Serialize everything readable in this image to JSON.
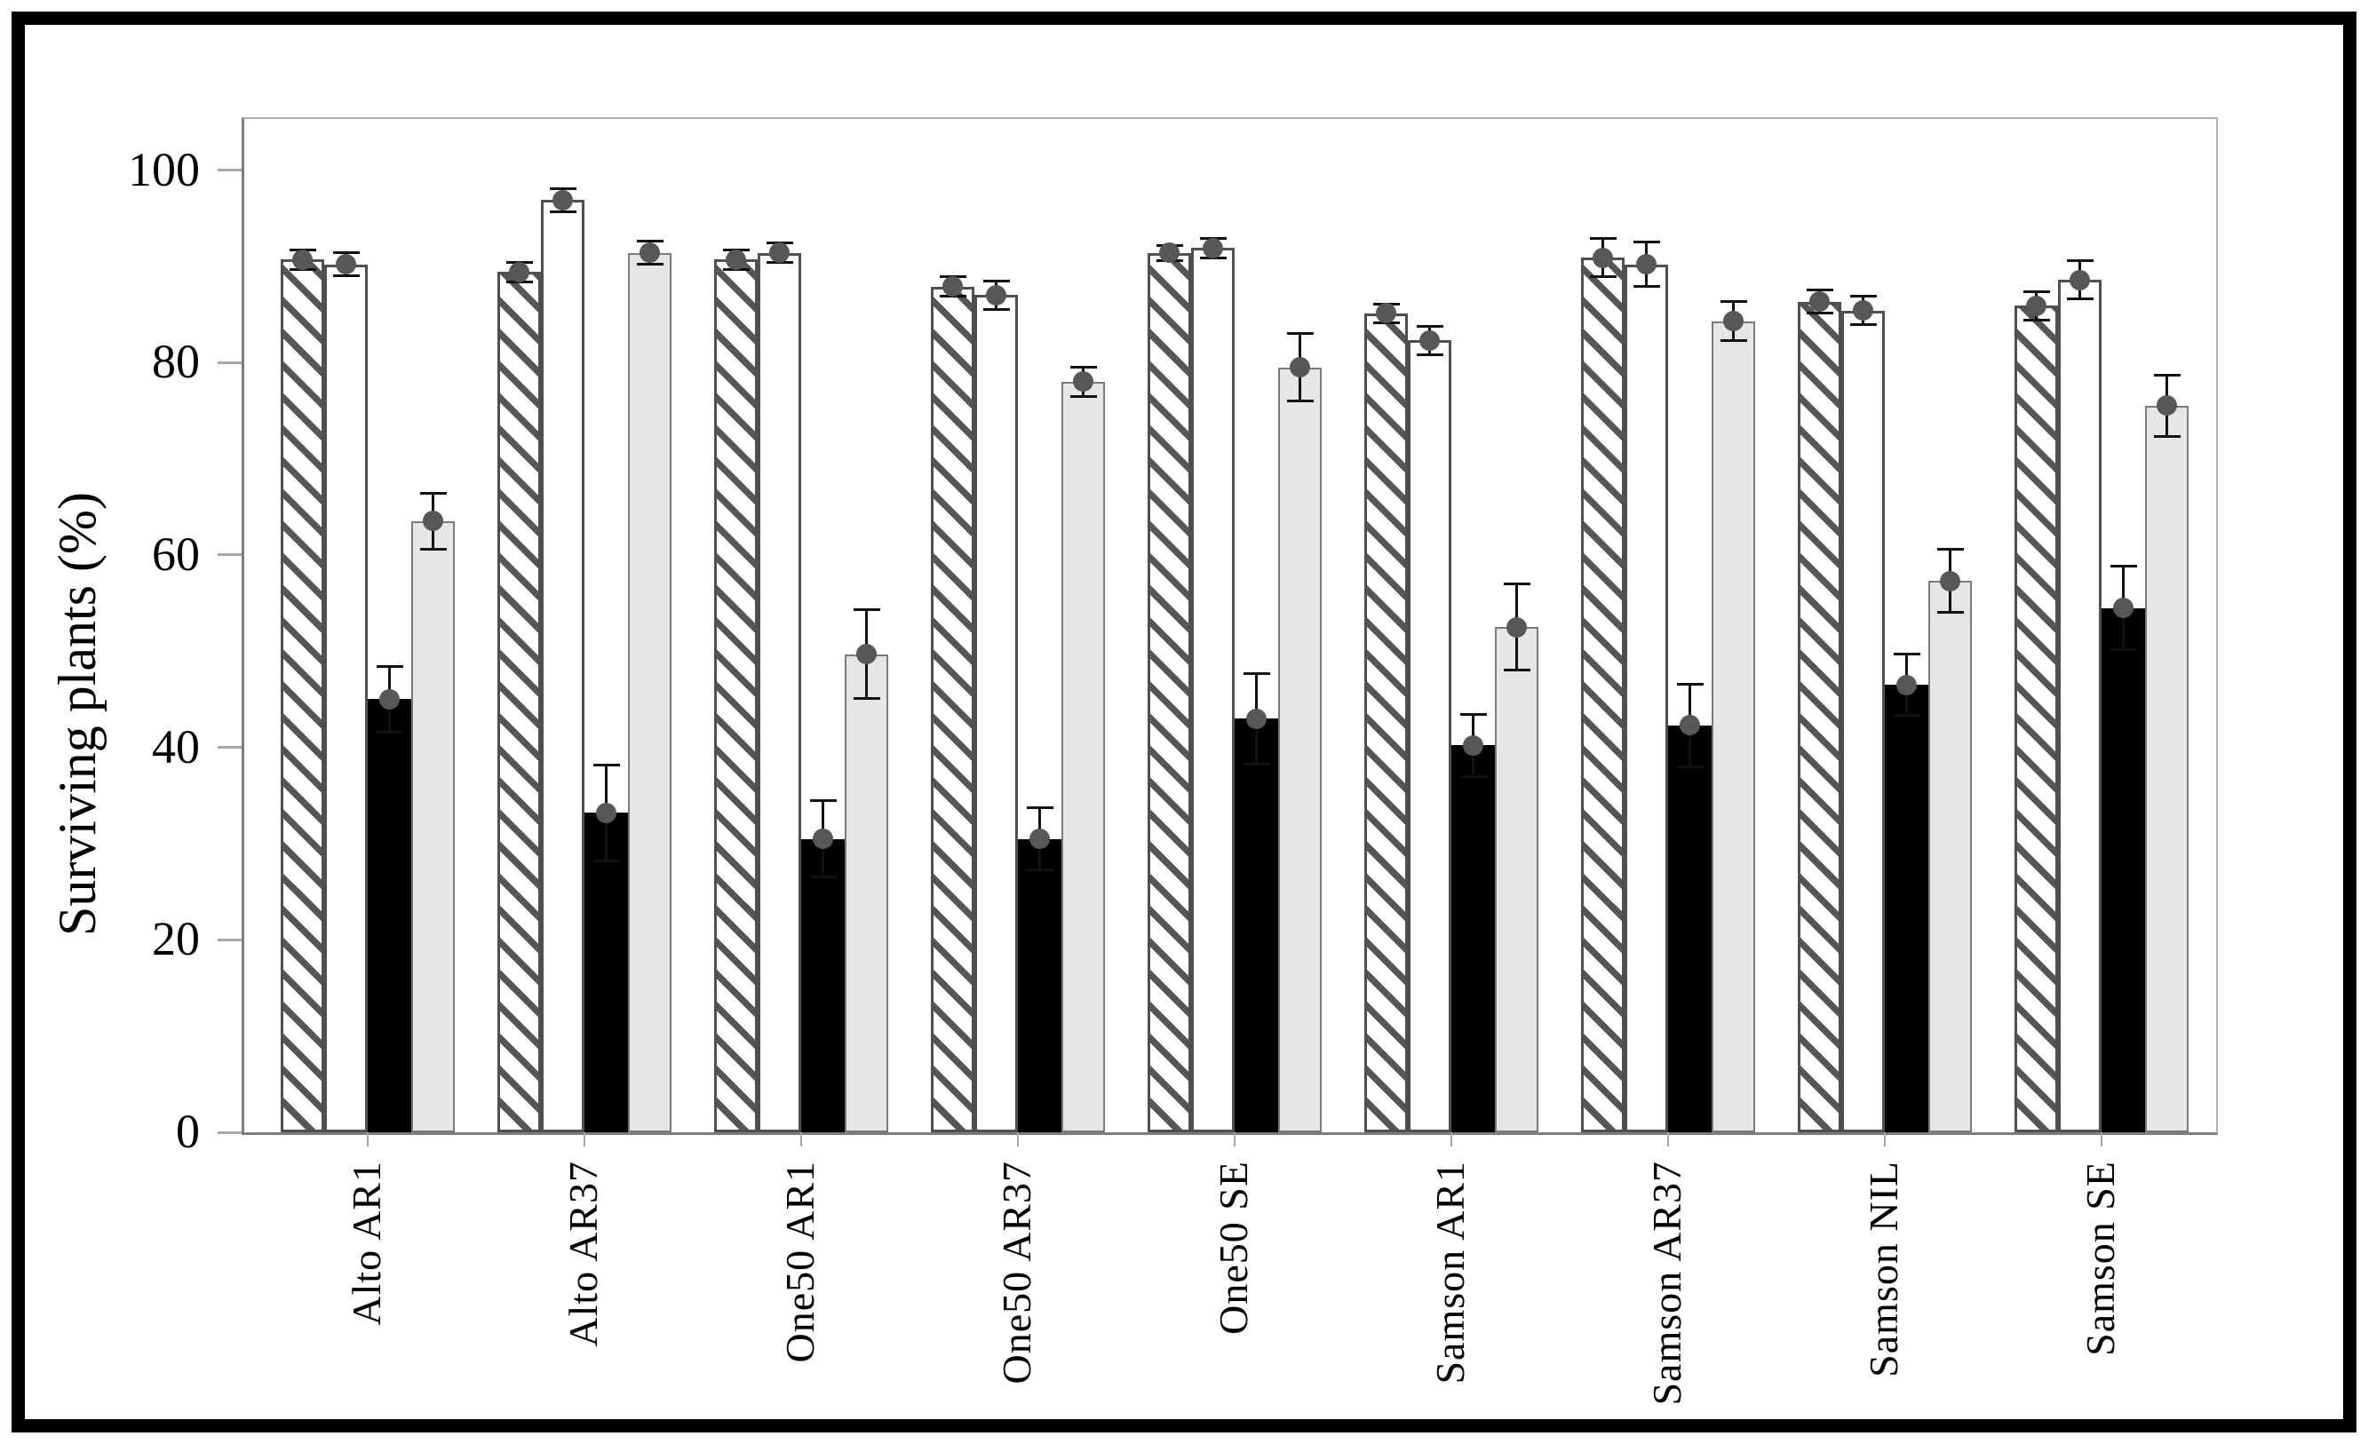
{
  "figure": {
    "background_color": "#ffffff",
    "outer_border_color": "#000000"
  },
  "chart_data": {
    "type": "bar",
    "title": "",
    "xlabel": "",
    "ylabel": "Surviving plants (%)",
    "ylim": [
      0,
      105.3
    ],
    "yticks": [
      0,
      20,
      40,
      60,
      80,
      100
    ],
    "grid": false,
    "legend_position": "none",
    "error_bars": true,
    "point_markers": true,
    "marker_color": "#575757",
    "axis_color": "#7d7d7d",
    "tick_color": "#a9a9a9",
    "categories": [
      "Alto AR1",
      "Alto AR37",
      "One50 AR1",
      "One50 AR37",
      "One50 SE",
      "Samson AR1",
      "Samson AR37",
      "Samson NIL",
      "Samson SE"
    ],
    "series": [
      {
        "name": "hatched",
        "appearance": "diagonal-hatch",
        "fill": "#ffffff",
        "hatch_color": "#565656",
        "values": [
          90.7,
          89.4,
          90.7,
          87.9,
          91.4,
          85.1,
          90.9,
          86.3,
          85.9
        ],
        "errors": [
          1.0,
          1.0,
          1.0,
          1.0,
          0.8,
          1.0,
          2.0,
          1.2,
          1.5
        ]
      },
      {
        "name": "white",
        "appearance": "solid",
        "fill": "#ffffff",
        "values": [
          90.2,
          96.9,
          91.4,
          87.0,
          91.9,
          82.3,
          90.2,
          85.4,
          88.6
        ],
        "errors": [
          1.2,
          1.2,
          1.0,
          1.5,
          1.0,
          1.5,
          2.3,
          1.5,
          2.0
        ]
      },
      {
        "name": "black",
        "appearance": "solid",
        "fill": "#000000",
        "values": [
          45.0,
          33.2,
          30.5,
          30.5,
          43.0,
          40.2,
          42.3,
          46.5,
          54.5
        ],
        "errors": [
          3.4,
          5.0,
          4.0,
          3.2,
          4.7,
          3.2,
          4.3,
          3.2,
          4.3
        ]
      },
      {
        "name": "light-gray",
        "appearance": "solid",
        "fill": "#e6e6e6",
        "values": [
          63.5,
          91.4,
          49.7,
          78.0,
          79.5,
          52.5,
          84.3,
          57.3,
          75.5
        ],
        "errors": [
          2.9,
          1.2,
          4.6,
          1.5,
          3.5,
          4.5,
          2.0,
          3.3,
          3.2
        ]
      }
    ]
  }
}
